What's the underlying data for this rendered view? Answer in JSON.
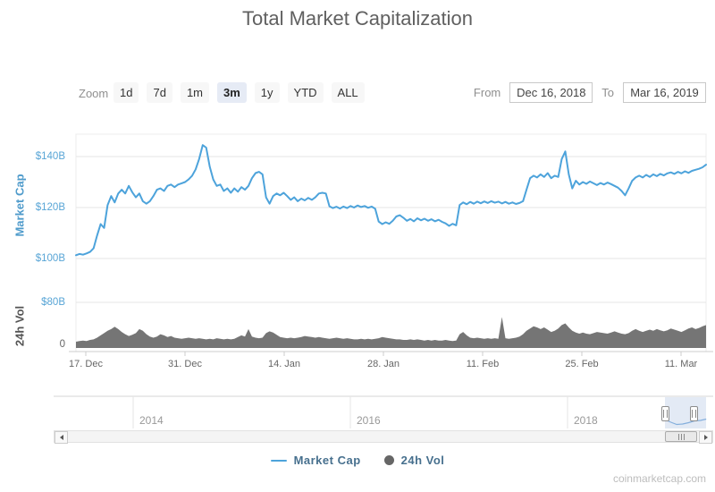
{
  "title": "Total Market Capitalization",
  "watermark": "coinmarketcap.com",
  "colors": {
    "market_cap_line": "#4da3db",
    "volume_fill": "#757575",
    "axis_label_blue": "#58a5d6",
    "selected_button_bg": "#e6ebf5",
    "grid": "#e6e6e6"
  },
  "range_selector": {
    "zoom_label": "Zoom",
    "buttons": [
      "1d",
      "7d",
      "1m",
      "3m",
      "1y",
      "YTD",
      "ALL"
    ],
    "selected": "3m",
    "from_label": "From",
    "from_value": "Dec 16, 2018",
    "to_label": "To",
    "to_value": "Mar 16, 2019"
  },
  "axes": {
    "market_cap_title": "Market Cap",
    "vol_title": "24h Vol",
    "market_cap_ticks": [
      {
        "label": "$140B",
        "value": 140
      },
      {
        "label": "$120B",
        "value": 120
      },
      {
        "label": "$100B",
        "value": 100
      },
      {
        "label": "$80B",
        "value": 80
      }
    ],
    "vol_zero_label": "0",
    "x_ticks": [
      "17. Dec",
      "31. Dec",
      "14. Jan",
      "28. Jan",
      "11. Feb",
      "25. Feb",
      "11. Mar"
    ]
  },
  "legend": [
    {
      "name": "Market Cap",
      "marker": "line",
      "color": "#4da3db"
    },
    {
      "name": "24h Vol",
      "marker": "circle",
      "color": "#666666"
    }
  ],
  "navigator": {
    "years": [
      "2014",
      "2016",
      "2018"
    ],
    "preview_y": [
      469,
      472,
      474.5,
      474,
      472.5,
      470.5,
      470,
      468.5
    ]
  },
  "chart_data": {
    "type": "line",
    "title": "Total Market Capitalization",
    "x_range": [
      "Dec 16, 2018",
      "Mar 16, 2019"
    ],
    "x_tick_labels": [
      "17. Dec",
      "31. Dec",
      "14. Jan",
      "28. Jan",
      "11. Feb",
      "25. Feb",
      "11. Mar"
    ],
    "legend_position": "bottom-center",
    "grid": true,
    "series": [
      {
        "name": "Market Cap",
        "type": "line",
        "unit": "USD billions",
        "color": "#4da3db",
        "ylim": [
          95,
          150
        ],
        "y_tick_labels": [
          "$140B",
          "$120B",
          "$100B",
          "$80B"
        ],
        "values": [
          101.3,
          101.8,
          101.5,
          102.0,
          102.6,
          104.0,
          109.0,
          113.5,
          112.0,
          121.0,
          124.5,
          122.0,
          125.5,
          127.0,
          125.5,
          128.5,
          126.0,
          124.0,
          125.5,
          122.5,
          121.5,
          122.5,
          124.5,
          127.0,
          127.5,
          126.5,
          128.5,
          129.0,
          128.0,
          129.0,
          129.5,
          130.0,
          131.0,
          132.5,
          135.0,
          139.0,
          144.5,
          143.5,
          136.0,
          131.0,
          128.5,
          129.0,
          126.5,
          127.5,
          125.8,
          127.5,
          126.2,
          128.0,
          127.0,
          128.5,
          131.5,
          133.5,
          134.0,
          133.0,
          124.0,
          121.5,
          124.5,
          125.5,
          124.8,
          125.8,
          124.5,
          123.0,
          124.0,
          122.5,
          123.5,
          122.8,
          123.8,
          123.0,
          124.0,
          125.5,
          125.8,
          125.5,
          120.5,
          119.8,
          120.3,
          119.6,
          120.4,
          119.8,
          120.6,
          120.0,
          120.8,
          120.2,
          120.6,
          119.9,
          120.4,
          119.5,
          114.5,
          113.5,
          114.2,
          113.6,
          114.8,
          116.5,
          117.0,
          116.0,
          114.8,
          115.5,
          114.6,
          115.8,
          115.0,
          115.6,
          114.8,
          115.4,
          114.6,
          115.2,
          114.4,
          113.8,
          112.8,
          113.6,
          113.0,
          121.0,
          122.0,
          121.3,
          122.2,
          121.5,
          122.3,
          121.7,
          122.4,
          121.8,
          122.5,
          121.9,
          122.3,
          121.6,
          122.2,
          121.5,
          122.0,
          121.4,
          121.8,
          122.5,
          127.0,
          131.5,
          132.5,
          131.8,
          133.0,
          132.0,
          133.5,
          131.5,
          132.5,
          132.0,
          139.0,
          142.0,
          133.0,
          127.5,
          130.5,
          129.0,
          130.0,
          129.3,
          130.2,
          129.5,
          128.8,
          129.6,
          129.0,
          129.8,
          129.2,
          128.5,
          127.8,
          126.5,
          124.8,
          127.5,
          130.5,
          131.8,
          132.5,
          131.8,
          132.8,
          132.0,
          133.0,
          132.3,
          133.2,
          132.6,
          133.4,
          133.8,
          133.2,
          134.0,
          133.4,
          134.2,
          133.6,
          134.4,
          134.8,
          135.2,
          135.8,
          136.8
        ]
      },
      {
        "name": "24h Vol",
        "type": "area",
        "unit": "USD billions",
        "color": "#757575",
        "ylim": [
          0,
          80
        ],
        "y_tick_labels": [
          "$80B",
          "0"
        ],
        "values": [
          11,
          12,
          13,
          12,
          14,
          15,
          18,
          22,
          26,
          30,
          33,
          37,
          33,
          28,
          24,
          21,
          23,
          26,
          33,
          30,
          24,
          20,
          18,
          20,
          24,
          22,
          19,
          21,
          18,
          17,
          16,
          17,
          18,
          17,
          16,
          17,
          16,
          15,
          16,
          15,
          17,
          16,
          15,
          16,
          15,
          16,
          19,
          22,
          20,
          33,
          20,
          18,
          17,
          18,
          26,
          29,
          27,
          23,
          19,
          18,
          17,
          18,
          17,
          18,
          19,
          21,
          20,
          19,
          18,
          19,
          18,
          17,
          16,
          17,
          18,
          17,
          16,
          17,
          16,
          15,
          15,
          16,
          15,
          16,
          15,
          16,
          17,
          19,
          18,
          17,
          16,
          15,
          15,
          14,
          14,
          15,
          14,
          15,
          14,
          13,
          14,
          13,
          14,
          13,
          13,
          14,
          13,
          12,
          13,
          24,
          28,
          22,
          18,
          17,
          18,
          17,
          16,
          17,
          16,
          17,
          16,
          54,
          17,
          16,
          17,
          18,
          20,
          24,
          30,
          34,
          38,
          36,
          33,
          36,
          32,
          28,
          30,
          34,
          40,
          43,
          36,
          30,
          27,
          25,
          27,
          25,
          24,
          26,
          28,
          27,
          26,
          25,
          27,
          29,
          27,
          25,
          24,
          26,
          30,
          33,
          30,
          28,
          30,
          32,
          30,
          33,
          31,
          29,
          31,
          34,
          32,
          30,
          28,
          31,
          34,
          36,
          33,
          35,
          38,
          40
        ]
      }
    ]
  }
}
